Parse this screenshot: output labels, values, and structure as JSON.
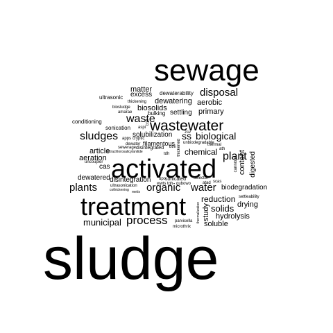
{
  "wordcloud": {
    "color": "#000000",
    "background": "#ffffff",
    "words": {
      "sludge": "sludge",
      "sewage": "sewage",
      "treatment": "treatment",
      "activated": "activated",
      "wastewater": "wastewater",
      "waste": "waste",
      "process": "process",
      "sludges": "sludges",
      "plant": "plant",
      "biological": "biological",
      "plants": "plants",
      "organic": "organic",
      "water": "water",
      "disposal": "disposal",
      "municipal": "municipal",
      "chemical": "chemical",
      "solids": "solids",
      "reduction": "reduction",
      "hydrolysis": "hydrolysis",
      "soluble": "soluble",
      "drying": "drying",
      "biodegradation": "biodegradation",
      "matter": "matter",
      "dewatering": "dewatering",
      "aerobic": "aerobic",
      "biosolids": "biosolids",
      "primary": "primary",
      "excess": "excess",
      "article": "article",
      "aeration": "aeration",
      "cas": "cas",
      "dewatered": "dewatered",
      "disintegration": "disintegration",
      "solubilization": "solubilization",
      "ss": "ss",
      "content": "content",
      "digested": "digested",
      "study": "study",
      "settling": "settling",
      "sonication": "sonication",
      "conditioning": "conditioning",
      "ultrasonic": "ultrasonic",
      "dewaterability": "dewaterability",
      "bulking": "bulking",
      "thickening": "thickening",
      "biosludge": "biosludge",
      "amarae": "amarae",
      "filamentous": "filamentous",
      "disintegrated": "disintegrated",
      "cryptic": "cryptic",
      "dewater": "dewater",
      "sewerage": "sewerage",
      "apps": "apps",
      "aspi": "aspi",
      "ccd": "ccd",
      "uncoupler": "uncoupler",
      "tetrachlorosalicylanilide": "tetrachlorosalicylanilide",
      "tdh": "tdh",
      "thickened": "thickened",
      "bthi": "bthi",
      "unbiodegradable": "unbiodegradable",
      "zsv": "zsv",
      "ath": "ath",
      "cannibal": "cannibal",
      "thermal": "thermal",
      "selector": "selector",
      "sonicated": "sonicated",
      "upo": "upo",
      "atad": "atad",
      "scas": "scas",
      "wwts": "wwts",
      "tgh": "tgh",
      "gubowo": "gubowo",
      "ultrasonication": "ultrasonication",
      "cothickening": "cothickening",
      "metix": "metix",
      "parvicella": "parvicella",
      "microthrix": "microthrix",
      "settleability": "settleability",
      "thermalization": "thermalization"
    }
  }
}
